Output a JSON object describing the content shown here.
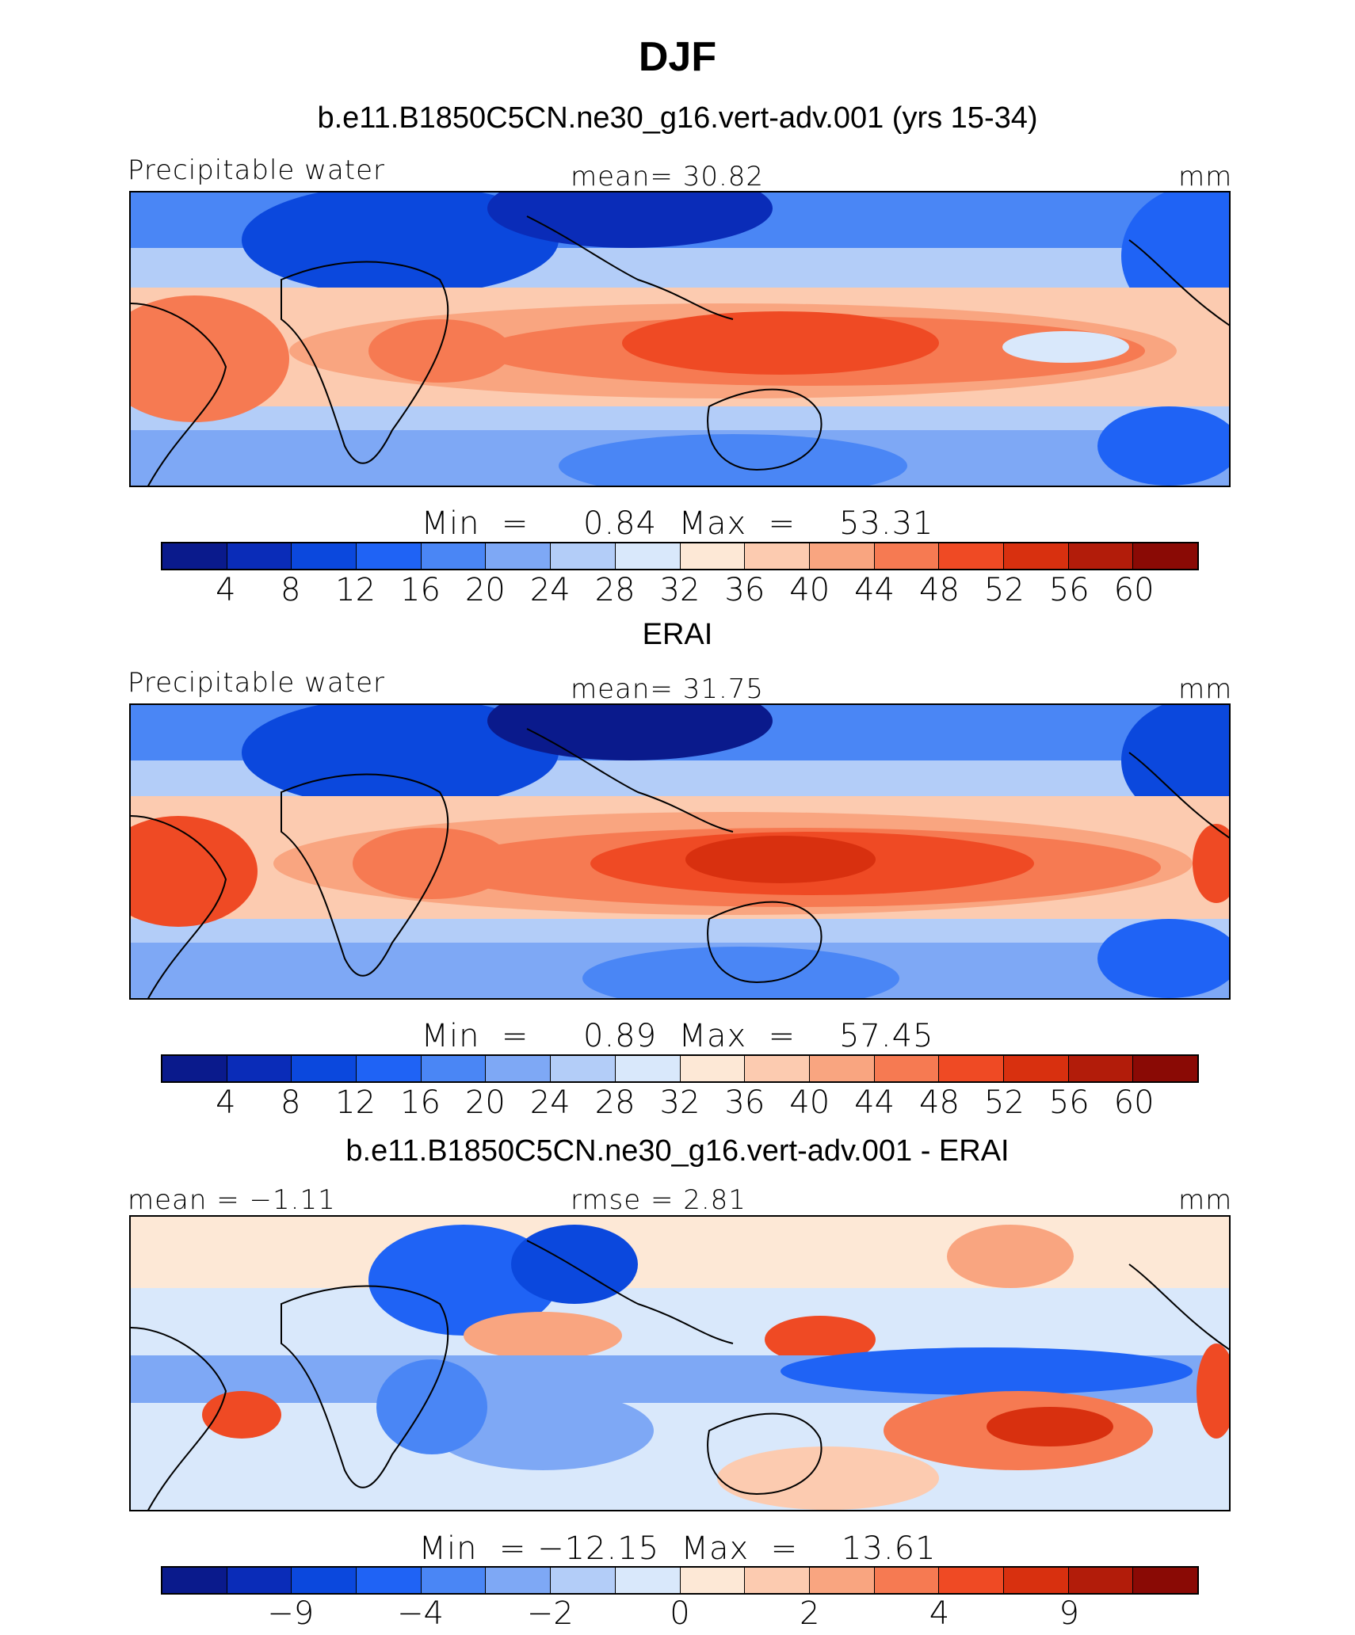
{
  "title": "DJF",
  "colors": [
    "#0a1a8c",
    "#0a2cb8",
    "#0b48dd",
    "#1f63f5",
    "#4a86f5",
    "#7ea8f5",
    "#b3cdf8",
    "#d9e8fb",
    "#fde8d6",
    "#fccbb0",
    "#f9a580",
    "#f67a52",
    "#ef4a24",
    "#d8300f",
    "#b21c0a",
    "#8a0a05"
  ],
  "panels": [
    {
      "title": "b.e11.B1850C5CN.ne30_g16.vert-adv.001 (yrs 15-34)",
      "left_label": "Precipitable water",
      "center_label": "mean=   30.82",
      "right_label": "mm",
      "min_max": "Min  =     0.84  Max  =    53.31",
      "ticks": [
        "4",
        "8",
        "12",
        "16",
        "20",
        "24",
        "28",
        "32",
        "36",
        "40",
        "44",
        "48",
        "52",
        "56",
        "60"
      ]
    },
    {
      "title": "ERAI",
      "left_label": "Precipitable water",
      "center_label": "mean=   31.75",
      "right_label": "mm",
      "min_max": "Min  =     0.89  Max  =    57.45",
      "ticks": [
        "4",
        "8",
        "12",
        "16",
        "20",
        "24",
        "28",
        "32",
        "36",
        "40",
        "44",
        "48",
        "52",
        "56",
        "60"
      ]
    },
    {
      "title": "b.e11.B1850C5CN.ne30_g16.vert-adv.001 - ERAI",
      "left_label": "mean =  −1.11",
      "center_label": "rmse =    2.81",
      "right_label": "mm",
      "min_max": "Min  = −12.15  Max  =    13.61",
      "ticks": [
        "−9",
        "−4",
        "−2",
        "0",
        "2",
        "4",
        "9"
      ]
    }
  ],
  "chart_data": [
    {
      "type": "heatmap",
      "title": "b.e11.B1850C5CN.ne30_g16.vert-adv.001 (yrs 15-34)",
      "variable": "Precipitable water",
      "units": "mm",
      "mean": 30.82,
      "min": 0.84,
      "max": 53.31,
      "levels": [
        4,
        8,
        12,
        16,
        20,
        24,
        28,
        32,
        36,
        40,
        44,
        48,
        52,
        56,
        60
      ]
    },
    {
      "type": "heatmap",
      "title": "ERAI",
      "variable": "Precipitable water",
      "units": "mm",
      "mean": 31.75,
      "min": 0.89,
      "max": 57.45,
      "levels": [
        4,
        8,
        12,
        16,
        20,
        24,
        28,
        32,
        36,
        40,
        44,
        48,
        52,
        56,
        60
      ]
    },
    {
      "type": "heatmap",
      "title": "b.e11.B1850C5CN.ne30_g16.vert-adv.001 - ERAI",
      "units": "mm",
      "mean": -1.11,
      "rmse": 2.81,
      "min": -12.15,
      "max": 13.61,
      "levels": [
        -9,
        -4,
        -2,
        0,
        2,
        4,
        9
      ]
    }
  ]
}
